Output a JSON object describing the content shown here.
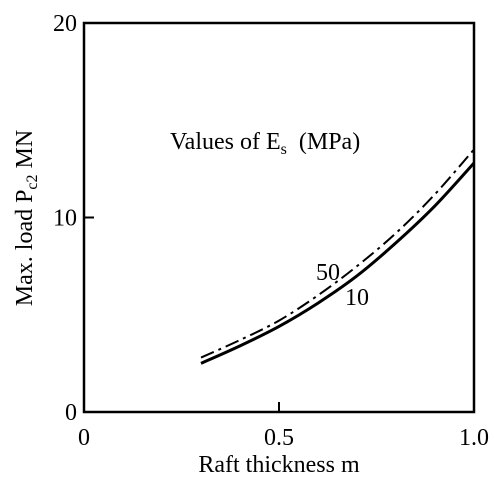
{
  "chart_data": {
    "type": "line",
    "title": "",
    "xlabel": "Raft thickness m",
    "ylabel": {
      "main": "Max. load P",
      "sub": "c2",
      "unit": " MN"
    },
    "xlim": [
      0,
      1.0
    ],
    "ylim": [
      0,
      20
    ],
    "x_ticks": [
      {
        "value": 0,
        "label": "0"
      },
      {
        "value": 0.5,
        "label": "0.5"
      },
      {
        "value": 1.0,
        "label": "1.0"
      }
    ],
    "y_ticks": [
      {
        "value": 0,
        "label": "0"
      },
      {
        "value": 10,
        "label": "10"
      },
      {
        "value": 20,
        "label": "20"
      }
    ],
    "grid": false,
    "legend_title": {
      "main": "Values of E",
      "sub": "s",
      "rest": "  (MPa)"
    },
    "series": [
      {
        "name": "10",
        "style": "solid",
        "color": "#000000",
        "x": [
          0.3,
          0.4,
          0.5,
          0.6,
          0.7,
          0.8,
          0.9,
          1.0
        ],
        "y": [
          2.5,
          3.4,
          4.4,
          5.6,
          7.0,
          8.7,
          10.6,
          12.8
        ]
      },
      {
        "name": "50",
        "style": "dash-dot",
        "color": "#000000",
        "x": [
          0.3,
          0.4,
          0.5,
          0.6,
          0.7,
          0.8,
          0.9,
          1.0
        ],
        "y": [
          2.8,
          3.7,
          4.7,
          6.0,
          7.5,
          9.2,
          11.2,
          13.5
        ]
      }
    ]
  }
}
